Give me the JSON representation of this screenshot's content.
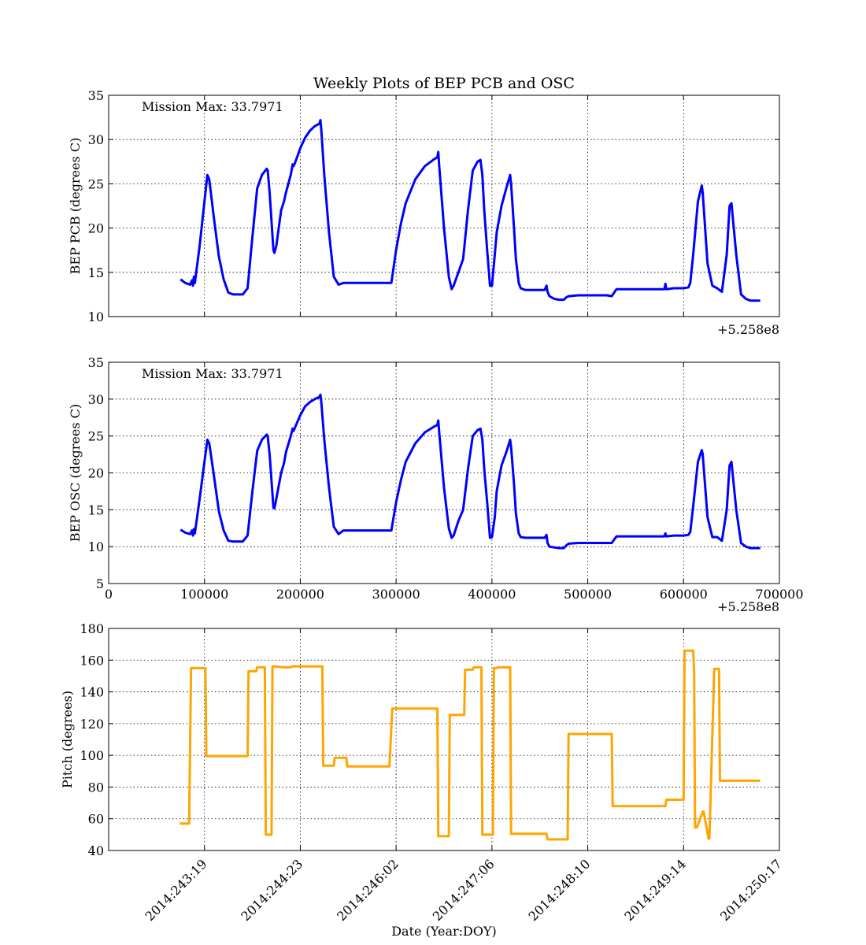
{
  "figure": {
    "title": "Weekly Plots of BEP PCB and OSC"
  },
  "chart_data": [
    {
      "type": "line",
      "title": "Weekly Plots of BEP PCB and OSC",
      "xlabel": "",
      "ylabel": "BEP PCB (degrees C)",
      "annotation": "Mission Max: 33.7971",
      "offset_label": "+5.258e8",
      "xlim": [
        0,
        700000
      ],
      "ylim": [
        10,
        35
      ],
      "yticks": [
        10,
        15,
        20,
        25,
        30,
        35
      ],
      "xticks": [
        100000,
        200000,
        300000,
        400000,
        500000,
        600000
      ],
      "show_xtick_labels": false,
      "grid": true,
      "color": "#0000ff",
      "series": [
        {
          "x": [
            75000,
            80000,
            85000,
            87000,
            88000,
            89000,
            90000,
            95000,
            100000,
            103000,
            105000,
            110000,
            115000,
            120000,
            125000,
            130000,
            140000,
            145000,
            150000,
            155000,
            160000,
            165000,
            166000,
            168000,
            172000,
            173000,
            175000,
            180000,
            183000,
            185000,
            190000,
            192000,
            193000,
            195000,
            200000,
            205000,
            210000,
            215000,
            220000,
            221000,
            222000,
            225000,
            230000,
            235000,
            240000,
            245000,
            250000,
            260000,
            270000,
            280000,
            290000,
            295000,
            300000,
            305000,
            310000,
            320000,
            330000,
            340000,
            343000,
            344000,
            345000,
            350000,
            355000,
            358000,
            360000,
            365000,
            370000,
            375000,
            380000,
            385000,
            388000,
            390000,
            392000,
            395000,
            398000,
            400000,
            403000,
            405000,
            410000,
            415000,
            419000,
            420000,
            423000,
            425000,
            428000,
            430000,
            435000,
            440000,
            445000,
            450000,
            455000,
            457000,
            458000,
            460000,
            465000,
            470000,
            475000,
            478000,
            480000,
            490000,
            500000,
            510000,
            520000,
            525000,
            530000,
            535000,
            540000,
            550000,
            560000,
            570000,
            580000,
            581000,
            582000,
            590000,
            600000,
            605000,
            607000,
            610000,
            615000,
            619000,
            620000,
            625000,
            630000,
            635000,
            640000,
            645000,
            648000,
            650000,
            655000,
            660000,
            665000,
            670000,
            675000,
            680000
          ],
          "y": [
            14.2,
            13.8,
            13.6,
            14.1,
            13.5,
            14.5,
            13.8,
            18.0,
            23.0,
            26.0,
            25.5,
            21.0,
            16.8,
            14.2,
            12.7,
            12.5,
            12.5,
            13.2,
            19.0,
            24.5,
            26.0,
            26.7,
            26.5,
            24.0,
            17.5,
            17.2,
            18.0,
            22.0,
            23.0,
            24.0,
            26.0,
            27.2,
            27.0,
            27.5,
            29.0,
            30.2,
            31.0,
            31.5,
            31.8,
            32.2,
            31.0,
            26.0,
            19.5,
            14.5,
            13.6,
            13.8,
            13.8,
            13.8,
            13.8,
            13.8,
            13.8,
            13.8,
            17.5,
            20.5,
            22.8,
            25.5,
            27.0,
            27.8,
            28.0,
            28.6,
            27.0,
            20.0,
            14.5,
            13.1,
            13.5,
            15.0,
            16.5,
            22.0,
            26.5,
            27.5,
            27.7,
            26.0,
            22.0,
            17.5,
            13.5,
            13.5,
            17.0,
            19.5,
            22.5,
            24.5,
            26.0,
            25.0,
            20.0,
            16.5,
            13.8,
            13.2,
            13.0,
            13.0,
            13.0,
            13.0,
            13.0,
            13.5,
            12.8,
            12.3,
            12.0,
            11.9,
            11.9,
            12.2,
            12.3,
            12.4,
            12.4,
            12.4,
            12.4,
            12.3,
            13.1,
            13.1,
            13.1,
            13.1,
            13.1,
            13.1,
            13.1,
            13.7,
            13.1,
            13.2,
            13.2,
            13.3,
            13.8,
            17.0,
            23.0,
            24.8,
            24.0,
            16.0,
            13.5,
            13.2,
            12.8,
            17.0,
            22.5,
            22.8,
            17.0,
            12.5,
            12.0,
            11.8,
            11.8,
            11.8
          ]
        }
      ]
    },
    {
      "type": "line",
      "title": "",
      "xlabel": "",
      "ylabel": "BEP OSC (degrees C)",
      "annotation": "Mission Max: 33.7971",
      "offset_label": "+5.258e8",
      "xlim": [
        0,
        700000
      ],
      "ylim": [
        5,
        35
      ],
      "yticks": [
        5,
        10,
        15,
        20,
        25,
        30,
        35
      ],
      "xticks": [
        0,
        100000,
        200000,
        300000,
        400000,
        500000,
        600000,
        700000
      ],
      "xtick_labels": [
        "0",
        "100000",
        "200000",
        "300000",
        "400000",
        "500000",
        "600000",
        "700000"
      ],
      "show_xtick_labels": true,
      "grid": true,
      "color": "#0000ff",
      "series": [
        {
          "x": [
            75000,
            80000,
            85000,
            87000,
            88000,
            89000,
            90000,
            95000,
            100000,
            103000,
            105000,
            110000,
            115000,
            120000,
            125000,
            130000,
            140000,
            145000,
            150000,
            155000,
            160000,
            165000,
            166000,
            168000,
            172000,
            173000,
            175000,
            180000,
            183000,
            185000,
            190000,
            192000,
            193000,
            195000,
            200000,
            205000,
            210000,
            215000,
            220000,
            221000,
            222000,
            225000,
            230000,
            235000,
            240000,
            245000,
            250000,
            260000,
            270000,
            280000,
            290000,
            295000,
            300000,
            305000,
            310000,
            320000,
            330000,
            340000,
            343000,
            344000,
            345000,
            350000,
            355000,
            358000,
            360000,
            365000,
            370000,
            375000,
            380000,
            385000,
            388000,
            390000,
            392000,
            395000,
            398000,
            400000,
            403000,
            405000,
            410000,
            415000,
            419000,
            420000,
            423000,
            425000,
            428000,
            430000,
            435000,
            440000,
            445000,
            450000,
            455000,
            457000,
            458000,
            460000,
            465000,
            470000,
            475000,
            478000,
            480000,
            490000,
            500000,
            510000,
            520000,
            525000,
            530000,
            535000,
            540000,
            550000,
            560000,
            570000,
            580000,
            581000,
            582000,
            590000,
            600000,
            605000,
            607000,
            610000,
            615000,
            619000,
            620000,
            625000,
            630000,
            635000,
            640000,
            645000,
            648000,
            650000,
            655000,
            660000,
            665000,
            670000,
            675000,
            680000
          ],
          "y": [
            12.3,
            11.9,
            11.7,
            12.2,
            11.5,
            12.4,
            11.8,
            16.5,
            21.5,
            24.5,
            24.0,
            19.5,
            14.8,
            12.2,
            10.8,
            10.7,
            10.7,
            11.5,
            17.5,
            23.0,
            24.5,
            25.2,
            25.0,
            22.5,
            15.3,
            15.2,
            16.5,
            20.0,
            21.3,
            22.8,
            25.0,
            26.0,
            25.7,
            26.3,
            27.8,
            29.0,
            29.6,
            30.0,
            30.3,
            30.6,
            29.5,
            24.5,
            18.0,
            12.7,
            11.7,
            12.2,
            12.2,
            12.2,
            12.2,
            12.2,
            12.2,
            12.2,
            16.0,
            19.0,
            21.5,
            24.0,
            25.5,
            26.3,
            26.5,
            27.1,
            25.5,
            18.0,
            12.5,
            11.2,
            11.5,
            13.5,
            15.0,
            20.5,
            25.0,
            25.8,
            26.0,
            24.5,
            20.5,
            16.0,
            11.2,
            11.3,
            14.0,
            17.5,
            21.0,
            22.8,
            24.5,
            23.5,
            18.5,
            14.5,
            11.8,
            11.3,
            11.2,
            11.2,
            11.2,
            11.2,
            11.2,
            11.6,
            10.5,
            10.0,
            9.9,
            9.8,
            9.8,
            10.2,
            10.4,
            10.5,
            10.5,
            10.5,
            10.5,
            10.5,
            11.4,
            11.4,
            11.4,
            11.4,
            11.4,
            11.4,
            11.4,
            11.8,
            11.4,
            11.5,
            11.5,
            11.6,
            12.0,
            15.5,
            21.5,
            23.1,
            22.5,
            14.0,
            11.3,
            11.3,
            10.8,
            15.0,
            21.0,
            21.5,
            15.0,
            10.5,
            10.0,
            9.8,
            9.8,
            9.8
          ]
        }
      ]
    },
    {
      "type": "line",
      "title": "",
      "xlabel": "Date (Year:DOY)",
      "ylabel": "Pitch (degrees)",
      "xlim": [
        0,
        700000
      ],
      "ylim": [
        40,
        180
      ],
      "yticks": [
        40,
        60,
        80,
        100,
        120,
        140,
        160,
        180
      ],
      "xticks": [
        100000,
        200000,
        300000,
        400000,
        500000,
        600000,
        700000
      ],
      "xtick_labels": [
        "2014:243:19",
        "2014:244:23",
        "2014:246:02",
        "2014:247:06",
        "2014:248:10",
        "2014:249:14",
        "2014:250:17"
      ],
      "show_xtick_labels": true,
      "grid": true,
      "color": "#ffa500",
      "series": [
        {
          "x": [
            74000,
            82000,
            84000,
            86000,
            100000,
            101000,
            102000,
            144000,
            145000,
            146000,
            154000,
            155000,
            156000,
            162000,
            163000,
            164000,
            170000,
            171000,
            172000,
            173000,
            174000,
            182000,
            190000,
            191000,
            222000,
            223000,
            224000,
            235000,
            236000,
            248000,
            249000,
            292000,
            293000,
            296000,
            342000,
            343000,
            344000,
            354000,
            355000,
            356000,
            370000,
            371000,
            372000,
            380000,
            381000,
            388000,
            389000,
            390000,
            400000,
            401000,
            402000,
            405000,
            406000,
            418000,
            419000,
            420000,
            456000,
            457000,
            458000,
            478000,
            479000,
            480000,
            524000,
            525000,
            526000,
            580000,
            581000,
            582000,
            599000,
            600000,
            601000,
            602000,
            603000,
            609000,
            610000,
            611000,
            612000,
            613000,
            614000,
            620000,
            621000,
            626000,
            627000,
            632000,
            633000,
            634000,
            637000,
            638000,
            640000,
            641000,
            642000,
            648000,
            649000,
            650000,
            680000
          ],
          "y": [
            57,
            57,
            57,
            155,
            155,
            155,
            99.5,
            99.5,
            99.5,
            153,
            153,
            155.5,
            155.5,
            155.5,
            155.5,
            50,
            50,
            156,
            156,
            156,
            156,
            155.5,
            155.5,
            156,
            156,
            156,
            93.5,
            93.5,
            98.5,
            98.5,
            93,
            93,
            93,
            129.5,
            129.5,
            129.5,
            49,
            49,
            49,
            125.5,
            125.5,
            125.5,
            154,
            154,
            155.5,
            155.5,
            155.5,
            50,
            50,
            50,
            155,
            155,
            155.5,
            155.5,
            155.5,
            50.5,
            50.5,
            50.5,
            47,
            47,
            47,
            113.5,
            113.5,
            113.5,
            68,
            68,
            68,
            72,
            72,
            72,
            166,
            166,
            166,
            166,
            166,
            152,
            54.5,
            54.5,
            54.5,
            64.5,
            64.5,
            47.5,
            47.5,
            154.5,
            154.5,
            154.5,
            154.5,
            84,
            84,
            84,
            84,
            84,
            84,
            84,
            84
          ]
        }
      ]
    }
  ]
}
